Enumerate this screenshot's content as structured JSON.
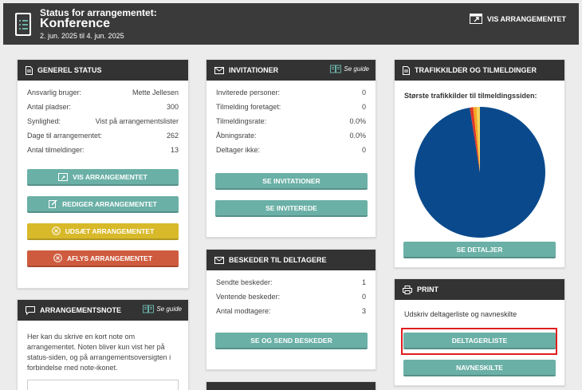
{
  "header": {
    "supertitle": "Status for arrangementet:",
    "title": "Konference",
    "dates": "2. jun. 2025 til 4. jun. 2025",
    "view_button": "VIS ARRANGEMENTET"
  },
  "general_status": {
    "title": "GENEREL STATUS",
    "rows": [
      {
        "label": "Ansvarlig bruger:",
        "value": "Mette Jellesen"
      },
      {
        "label": "Antal pladser:",
        "value": "300"
      },
      {
        "label": "Synlighed:",
        "value": "Vist på arrangementslister"
      },
      {
        "label": "Dage til arrangementet:",
        "value": "262"
      },
      {
        "label": "Antal tilmeldinger:",
        "value": "13"
      }
    ],
    "buttons": {
      "view": "VIS ARRANGEMENTET",
      "edit": "REDIGER ARRANGEMENTET",
      "postpone": "UDSÆT ARRANGEMENTET",
      "cancel": "AFLYS ARRANGEMENTET"
    }
  },
  "note": {
    "title": "ARRANGEMENTSNOTE",
    "guide": "Se guide",
    "text": "Her kan du skrive en kort note om arrangementet. Noten bliver kun vist her på status-siden, og på arrangementsoversigten i forbindelse med note-ikonet."
  },
  "invitations": {
    "title": "INVITATIONER",
    "guide": "Se guide",
    "rows": [
      {
        "label": "Inviterede personer:",
        "value": "0"
      },
      {
        "label": "Tilmelding foretaget:",
        "value": "0"
      },
      {
        "label": "Tilmeldingsrate:",
        "value": "0.0%"
      },
      {
        "label": "Åbningsrate:",
        "value": "0.0%"
      },
      {
        "label": "Deltager ikke:",
        "value": "0"
      }
    ],
    "buttons": {
      "see_invitations": "SE INVITATIONER",
      "see_invited": "SE INVITEREDE"
    }
  },
  "messages": {
    "title": "BESKEDER TIL DELTAGERE",
    "rows": [
      {
        "label": "Sendte beskeder:",
        "value": "1"
      },
      {
        "label": "Ventende beskeder:",
        "value": "0"
      },
      {
        "label": "Antal modtagere:",
        "value": "3"
      }
    ],
    "button": "SE OG SEND BESKEDER"
  },
  "traffic": {
    "title": "TRAFIKKILDER OG TILMELDINGER",
    "subtitle": "Største trafikkilder til tilmeldingssiden:",
    "button": "SE DETALJER",
    "colors": {
      "main": "#0a4a8c",
      "red": "#e0362a",
      "orange": "#f5a623",
      "yellow": "#f3d35c"
    }
  },
  "print": {
    "title": "PRINT",
    "text": "Udskriv deltagerliste og navneskilte",
    "buttons": {
      "list": "DELTAGERLISTE",
      "badges": "NAVNESKILTE"
    }
  }
}
